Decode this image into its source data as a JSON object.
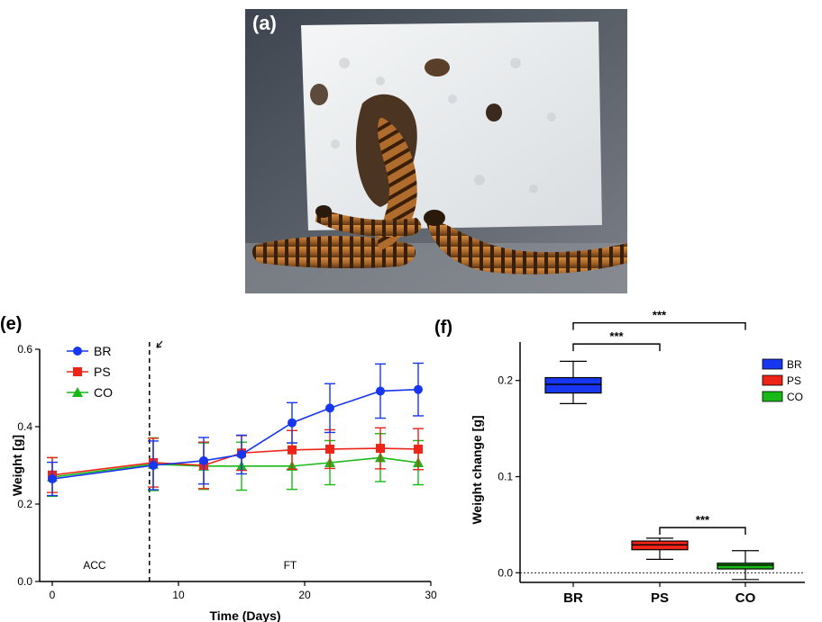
{
  "figure": {
    "panel_a_label": "(a)",
    "panel_e_label": "(e)",
    "panel_f_label": "(f)",
    "photo_subject": "mealworms-eating-polystyrene-foam"
  },
  "colors": {
    "BR": "#1736f0",
    "PS": "#ee2418",
    "CO": "#18b818",
    "photo_bg": "#4a4f58",
    "foam": "#eceff1"
  },
  "chart_data": [
    {
      "type": "line",
      "panel": "(e)",
      "xlabel": "Time (Days)",
      "ylabel": "Weight [g]",
      "xlim": [
        -1,
        30
      ],
      "ylim": [
        0.0,
        0.6
      ],
      "xticks": [
        0,
        10,
        20,
        30
      ],
      "yticks": [
        0.0,
        0.2,
        0.4,
        0.6
      ],
      "ytick_labels": [
        "0.0",
        "0.2",
        "0.4",
        "0.6"
      ],
      "acc_end_day": 7.7,
      "region_labels": {
        "acc": "ACC",
        "ft": "FT"
      },
      "legend_position": "top-left",
      "series": [
        {
          "name": "BR",
          "marker": "circle",
          "x": [
            0,
            8,
            12,
            15,
            19,
            22,
            26,
            29
          ],
          "y": [
            0.265,
            0.3,
            0.312,
            0.328,
            0.41,
            0.448,
            0.492,
            0.496
          ],
          "err": [
            0.043,
            0.063,
            0.06,
            0.05,
            0.052,
            0.063,
            0.07,
            0.068
          ]
        },
        {
          "name": "PS",
          "marker": "square",
          "x": [
            0,
            8,
            12,
            15,
            19,
            22,
            26,
            29
          ],
          "y": [
            0.275,
            0.307,
            0.3,
            0.332,
            0.34,
            0.342,
            0.344,
            0.342
          ],
          "err": [
            0.045,
            0.063,
            0.06,
            0.045,
            0.05,
            0.05,
            0.053,
            0.053
          ]
        },
        {
          "name": "CO",
          "marker": "triangle",
          "x": [
            0,
            8,
            12,
            15,
            19,
            22,
            26,
            29
          ],
          "y": [
            0.27,
            0.303,
            0.298,
            0.298,
            0.298,
            0.307,
            0.32,
            0.307
          ],
          "err": [
            0.05,
            0.068,
            0.06,
            0.062,
            0.06,
            0.057,
            0.062,
            0.057
          ]
        }
      ]
    },
    {
      "type": "box",
      "panel": "(f)",
      "ylabel": "Weight change [g]",
      "ylim": [
        -0.01,
        0.24
      ],
      "yticks": [
        0.0,
        0.1,
        0.2
      ],
      "ytick_labels": [
        "0.0",
        "0.1",
        "0.2"
      ],
      "reference_line": 0.0,
      "categories": [
        "BR",
        "PS",
        "CO"
      ],
      "boxes": [
        {
          "name": "BR",
          "min": 0.176,
          "q1": 0.187,
          "median": 0.196,
          "q3": 0.203,
          "max": 0.22
        },
        {
          "name": "PS",
          "min": 0.014,
          "q1": 0.024,
          "median": 0.029,
          "q3": 0.033,
          "max": 0.036
        },
        {
          "name": "CO",
          "min": -0.007,
          "q1": 0.004,
          "median": 0.008,
          "q3": 0.01,
          "max": 0.023
        }
      ],
      "significance": [
        {
          "from": "BR",
          "to": "CO",
          "label": "***",
          "level": 0.26
        },
        {
          "from": "BR",
          "to": "PS",
          "label": "***",
          "level": 0.238
        },
        {
          "from": "PS",
          "to": "CO",
          "label": "***",
          "level": 0.047
        }
      ],
      "legend_position": "top-right",
      "legend": [
        "BR",
        "PS",
        "CO"
      ]
    }
  ]
}
